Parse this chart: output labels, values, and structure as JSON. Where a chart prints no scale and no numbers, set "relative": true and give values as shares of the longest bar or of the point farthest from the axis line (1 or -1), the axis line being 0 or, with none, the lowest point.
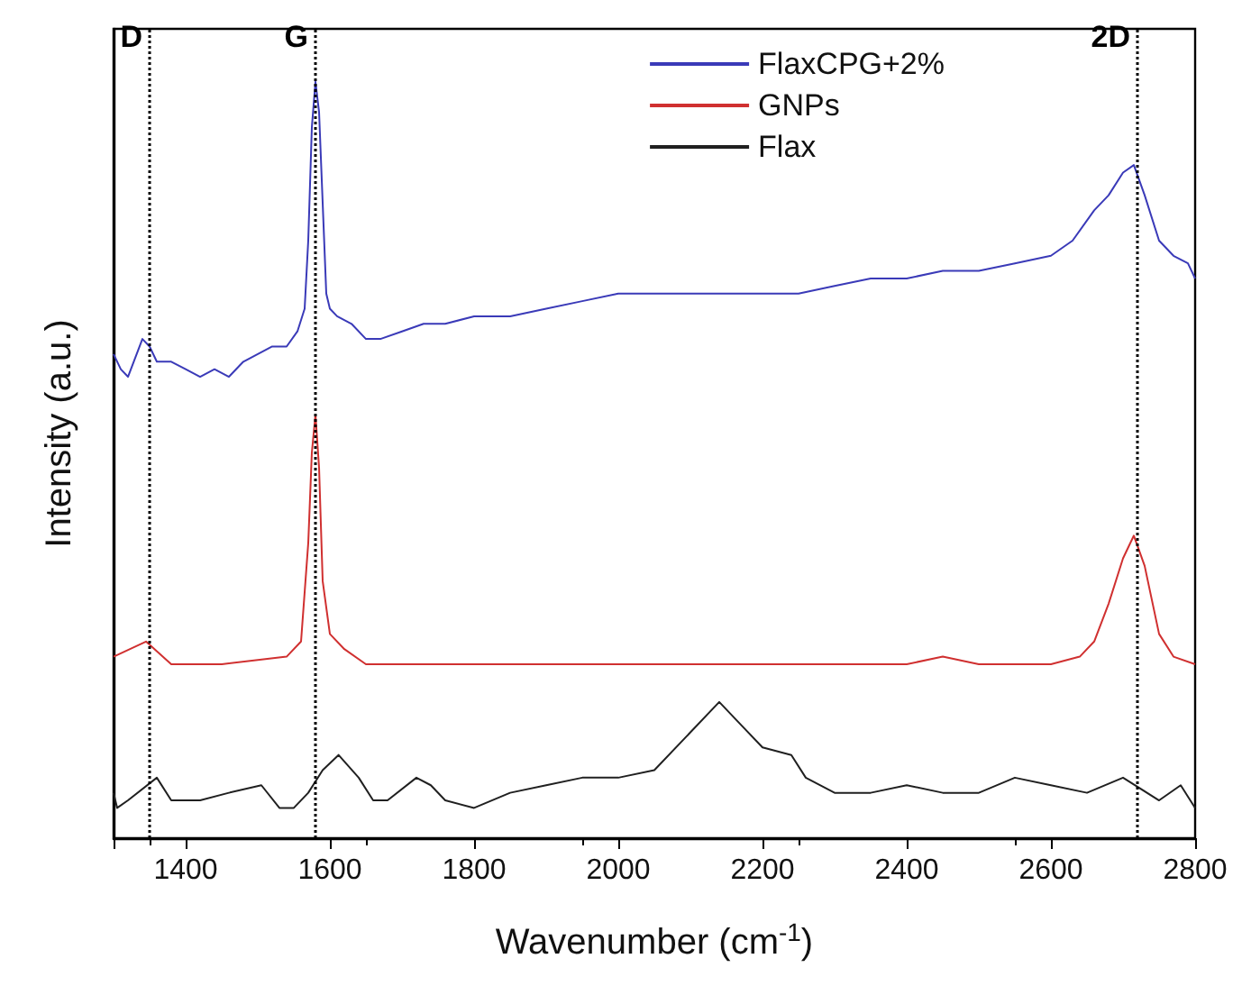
{
  "chart_data": {
    "type": "line",
    "relative": true,
    "xlabel": "Wavenumber (cm$^{-1}$)",
    "ylabel": "Intensity (a.u.)",
    "xlim": [
      1300,
      2800
    ],
    "xticks": [
      {
        "value": 1300,
        "label": null
      },
      1400,
      1600,
      1800,
      2000,
      2200,
      2400,
      2600,
      2800
    ],
    "grid": false,
    "legend": "top right",
    "marker": "none",
    "line_style": "solid",
    "tick_labels": "x",
    "series": [
      {
        "name": "FlaxCPG+2%",
        "color": "#3a3ab8",
        "x": [
          1300,
          1310,
          1320,
          1340,
          1350,
          1360,
          1380,
          1400,
          1420,
          1440,
          1460,
          1480,
          1500,
          1520,
          1540,
          1555,
          1565,
          1570,
          1575,
          1580,
          1585,
          1590,
          1595,
          1600,
          1610,
          1630,
          1650,
          1670,
          1700,
          1730,
          1760,
          1800,
          1850,
          1900,
          1950,
          2000,
          2050,
          2100,
          2150,
          2200,
          2250,
          2300,
          2350,
          2400,
          2450,
          2500,
          2550,
          2600,
          2630,
          2660,
          2680,
          2700,
          2715,
          2730,
          2750,
          2770,
          2790,
          2800
        ],
        "values": [
          0.64,
          0.62,
          0.61,
          0.66,
          0.65,
          0.63,
          0.63,
          0.62,
          0.61,
          0.62,
          0.61,
          0.63,
          0.64,
          0.65,
          0.65,
          0.67,
          0.7,
          0.79,
          0.94,
          1,
          0.96,
          0.84,
          0.72,
          0.7,
          0.69,
          0.68,
          0.66,
          0.66,
          0.67,
          0.68,
          0.68,
          0.69,
          0.69,
          0.7,
          0.71,
          0.72,
          0.72,
          0.72,
          0.72,
          0.72,
          0.72,
          0.73,
          0.74,
          0.74,
          0.75,
          0.75,
          0.76,
          0.77,
          0.79,
          0.83,
          0.85,
          0.88,
          0.89,
          0.85,
          0.79,
          0.77,
          0.76,
          0.74
        ]
      },
      {
        "name": "GNPs",
        "color": "#d03030",
        "x": [
          1300,
          1345,
          1380,
          1450,
          1540,
          1560,
          1570,
          1575,
          1580,
          1585,
          1590,
          1600,
          1620,
          1650,
          1700,
          1800,
          1900,
          2000,
          2100,
          2200,
          2300,
          2400,
          2450,
          2500,
          2600,
          2640,
          2660,
          2680,
          2700,
          2715,
          2730,
          2750,
          2770,
          2800
        ],
        "values": [
          0.24,
          0.26,
          0.23,
          0.23,
          0.24,
          0.26,
          0.39,
          0.51,
          0.56,
          0.49,
          0.34,
          0.27,
          0.25,
          0.23,
          0.23,
          0.23,
          0.23,
          0.23,
          0.23,
          0.23,
          0.23,
          0.23,
          0.24,
          0.23,
          0.23,
          0.24,
          0.26,
          0.31,
          0.37,
          0.4,
          0.36,
          0.27,
          0.24,
          0.23
        ]
      },
      {
        "name": "Flax",
        "color": "#202020",
        "x": [
          1300,
          1305,
          1320,
          1360,
          1380,
          1420,
          1460,
          1505,
          1530,
          1550,
          1570,
          1590,
          1612,
          1640,
          1660,
          1680,
          1720,
          1740,
          1760,
          1800,
          1850,
          1900,
          1950,
          2000,
          2050,
          2100,
          2140,
          2170,
          2200,
          2240,
          2260,
          2300,
          2350,
          2400,
          2450,
          2500,
          2550,
          2600,
          2650,
          2700,
          2750,
          2780,
          2800
        ],
        "values": [
          0.06,
          0.04,
          0.05,
          0.08,
          0.05,
          0.05,
          0.06,
          0.07,
          0.04,
          0.04,
          0.06,
          0.09,
          0.11,
          0.08,
          0.05,
          0.05,
          0.08,
          0.07,
          0.05,
          0.04,
          0.06,
          0.07,
          0.08,
          0.08,
          0.09,
          0.14,
          0.18,
          0.15,
          0.12,
          0.11,
          0.08,
          0.06,
          0.06,
          0.07,
          0.06,
          0.06,
          0.08,
          0.07,
          0.06,
          0.08,
          0.05,
          0.07,
          0.04
        ]
      }
    ],
    "ref_lines": [
      {
        "axis": "x",
        "value": 1350,
        "label": "D",
        "color": "#000000",
        "line_style": "dotted"
      },
      {
        "axis": "x",
        "value": 1580,
        "label": "G",
        "color": "#000000",
        "line_style": "dotted"
      },
      {
        "axis": "x",
        "value": 2720,
        "label": "2D",
        "color": "#000000",
        "line_style": "dotted"
      }
    ]
  }
}
